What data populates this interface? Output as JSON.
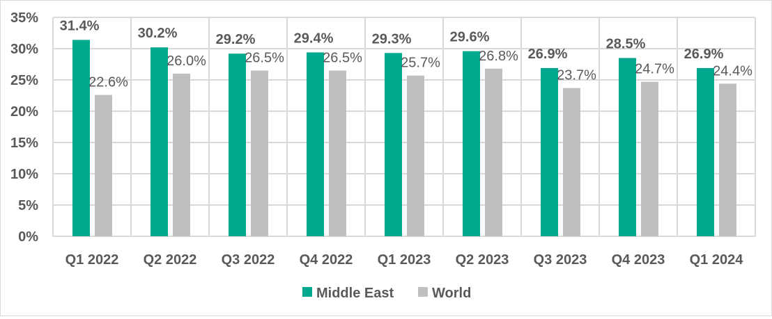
{
  "chart_data": {
    "type": "bar",
    "categories": [
      "Q1 2022",
      "Q2 2022",
      "Q3 2022",
      "Q4 2022",
      "Q1 2023",
      "Q2 2023",
      "Q3 2023",
      "Q4 2023",
      "Q1 2024"
    ],
    "series": [
      {
        "name": "Middle East",
        "color": "#00A88E",
        "values": [
          31.4,
          30.2,
          29.2,
          29.4,
          29.3,
          29.6,
          26.9,
          28.5,
          26.9
        ],
        "labels": [
          "31.4%",
          "30.2%",
          "29.2%",
          "29.4%",
          "29.3%",
          "29.6%",
          "26.9%",
          "28.5%",
          "26.9%"
        ]
      },
      {
        "name": "World",
        "color": "#BFBFBF",
        "values": [
          22.6,
          26.0,
          26.5,
          26.5,
          25.7,
          26.8,
          23.7,
          24.7,
          24.4
        ],
        "labels": [
          "22.6%",
          "26.0%",
          "26.5%",
          "26.5%",
          "25.7%",
          "26.8%",
          "23.7%",
          "24.7%",
          "24.4%"
        ]
      }
    ],
    "yticks": [
      "0%",
      "5%",
      "10%",
      "15%",
      "20%",
      "25%",
      "30%",
      "35%"
    ],
    "ylim": [
      0,
      35
    ],
    "grid": true,
    "legend": "bottom",
    "title": "",
    "xlabel": "",
    "ylabel": ""
  }
}
